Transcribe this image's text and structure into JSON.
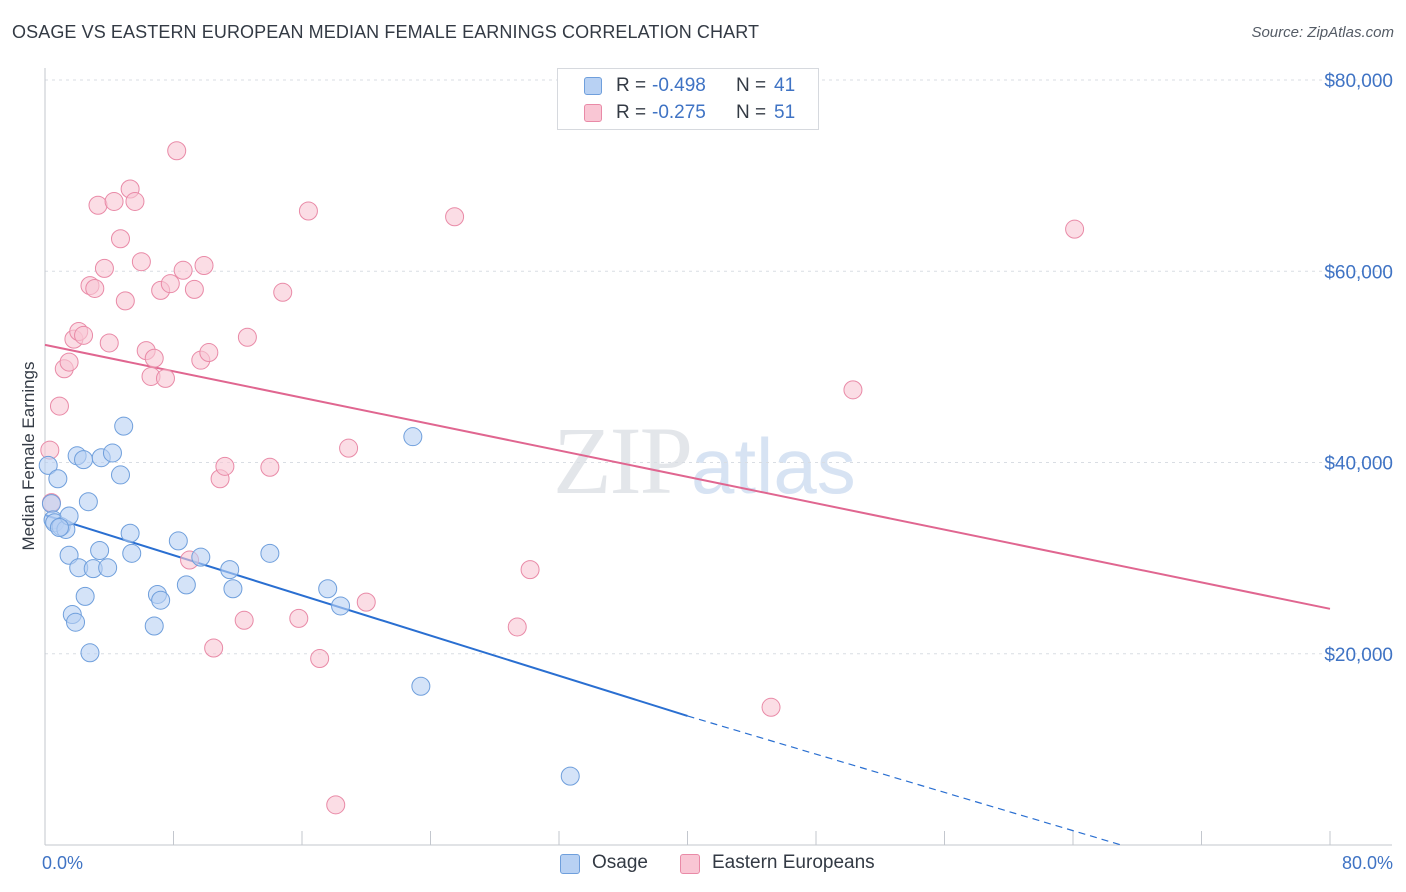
{
  "title": "OSAGE VS EASTERN EUROPEAN MEDIAN FEMALE EARNINGS CORRELATION CHART",
  "source": "Source: ZipAtlas.com",
  "watermark": {
    "zip": "ZIP",
    "atlas": "atlas"
  },
  "legend": [
    {
      "r_label": "R =",
      "r_value": "-0.498",
      "n_label": "N =",
      "n_value": "41"
    },
    {
      "r_label": "R =",
      "r_value": "-0.275",
      "n_label": "N =",
      "n_value": "51"
    }
  ],
  "bottom_legend": {
    "series1": "Osage",
    "series2": "Eastern Europeans"
  },
  "colors": {
    "osage_fill": "#b8d1f3",
    "osage_stroke": "#6f9fdc",
    "osage_line": "#2a6fd1",
    "ee_fill": "#f9c6d4",
    "ee_stroke": "#e98aa7",
    "ee_line": "#e06690",
    "grid": "#d9dde3",
    "tick_label": "#3f73c4"
  },
  "chart_data": {
    "type": "scatter",
    "xlabel": "",
    "ylabel": "Median Female Earnings",
    "xlim": [
      0,
      80
    ],
    "ylim": [
      0,
      80000
    ],
    "x_tick_labels": [
      "0.0%",
      "80.0%"
    ],
    "y_ticks": [
      20000,
      40000,
      60000,
      80000
    ],
    "y_tick_labels": [
      "$20,000",
      "$40,000",
      "$60,000",
      "$80,000"
    ],
    "grid": true,
    "legend_position": "top-center",
    "series": [
      {
        "name": "Osage",
        "trend": {
          "x0": 0,
          "y0": 34500,
          "x1": 40,
          "y1": 13500,
          "dashed_to_x": 67,
          "dashed_to_y": 0
        },
        "points": [
          [
            0.2,
            39700
          ],
          [
            0.4,
            35700
          ],
          [
            0.5,
            34000
          ],
          [
            0.6,
            33700
          ],
          [
            0.8,
            38300
          ],
          [
            1.0,
            33300
          ],
          [
            1.3,
            33000
          ],
          [
            1.5,
            34400
          ],
          [
            1.5,
            30300
          ],
          [
            1.7,
            24100
          ],
          [
            1.9,
            23300
          ],
          [
            2.0,
            40700
          ],
          [
            2.1,
            29000
          ],
          [
            2.4,
            40300
          ],
          [
            2.5,
            26000
          ],
          [
            2.7,
            35900
          ],
          [
            2.8,
            20100
          ],
          [
            3.0,
            28900
          ],
          [
            3.4,
            30800
          ],
          [
            3.5,
            40500
          ],
          [
            3.9,
            29000
          ],
          [
            4.2,
            41000
          ],
          [
            4.7,
            38700
          ],
          [
            4.9,
            43800
          ],
          [
            5.3,
            32600
          ],
          [
            5.4,
            30500
          ],
          [
            6.8,
            22900
          ],
          [
            7.0,
            26200
          ],
          [
            7.2,
            25600
          ],
          [
            8.3,
            31800
          ],
          [
            8.8,
            27200
          ],
          [
            9.7,
            30100
          ],
          [
            11.5,
            28800
          ],
          [
            11.7,
            26800
          ],
          [
            14.0,
            30500
          ],
          [
            17.6,
            26800
          ],
          [
            18.4,
            25000
          ],
          [
            22.9,
            42700
          ],
          [
            23.4,
            16600
          ],
          [
            32.7,
            7200
          ],
          [
            0.9,
            33200
          ]
        ]
      },
      {
        "name": "Eastern Europeans",
        "trend": {
          "x0": 0,
          "y0": 52300,
          "x1": 80,
          "y1": 24700
        },
        "points": [
          [
            0.3,
            41300
          ],
          [
            0.4,
            35800
          ],
          [
            0.9,
            45900
          ],
          [
            1.2,
            49800
          ],
          [
            1.5,
            50500
          ],
          [
            1.8,
            52900
          ],
          [
            2.1,
            53700
          ],
          [
            2.4,
            53300
          ],
          [
            2.8,
            58500
          ],
          [
            3.1,
            58200
          ],
          [
            3.3,
            66900
          ],
          [
            3.7,
            60300
          ],
          [
            4.0,
            52500
          ],
          [
            4.3,
            67300
          ],
          [
            4.7,
            63400
          ],
          [
            5.0,
            56900
          ],
          [
            5.3,
            68600
          ],
          [
            5.6,
            67300
          ],
          [
            6.0,
            61000
          ],
          [
            6.3,
            51700
          ],
          [
            6.6,
            49000
          ],
          [
            6.8,
            50900
          ],
          [
            7.2,
            58000
          ],
          [
            7.5,
            48800
          ],
          [
            7.8,
            58700
          ],
          [
            8.2,
            72600
          ],
          [
            8.6,
            60100
          ],
          [
            9.0,
            29800
          ],
          [
            9.3,
            58100
          ],
          [
            9.7,
            50700
          ],
          [
            9.9,
            60600
          ],
          [
            10.2,
            51500
          ],
          [
            10.5,
            20600
          ],
          [
            10.9,
            38300
          ],
          [
            11.2,
            39600
          ],
          [
            12.4,
            23500
          ],
          [
            12.6,
            53100
          ],
          [
            14.0,
            39500
          ],
          [
            14.8,
            57800
          ],
          [
            15.8,
            23700
          ],
          [
            16.4,
            66300
          ],
          [
            17.1,
            19500
          ],
          [
            18.1,
            4200
          ],
          [
            18.9,
            41500
          ],
          [
            20.0,
            25400
          ],
          [
            25.5,
            65700
          ],
          [
            29.4,
            22800
          ],
          [
            30.2,
            28800
          ],
          [
            45.2,
            14400
          ],
          [
            50.3,
            47600
          ],
          [
            64.1,
            64400
          ]
        ]
      }
    ]
  }
}
